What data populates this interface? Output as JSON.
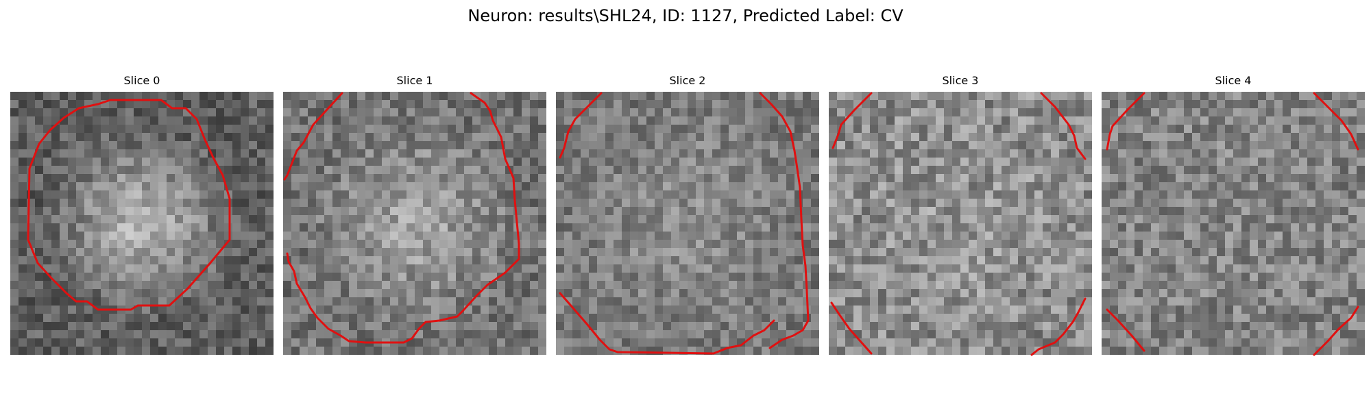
{
  "figure": {
    "title": "Neuron: results\\SHL24, ID: 1127, Predicted Label: CV",
    "contour_color": "#e01010"
  },
  "slices": [
    {
      "title": "Slice 0"
    },
    {
      "title": "Slice 1"
    },
    {
      "title": "Slice 2"
    },
    {
      "title": "Slice 3"
    },
    {
      "title": "Slice 4"
    }
  ]
}
